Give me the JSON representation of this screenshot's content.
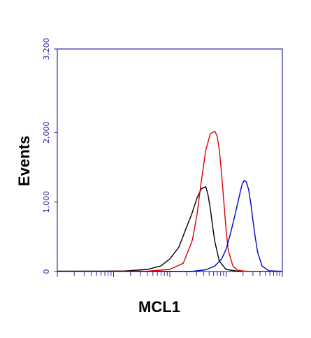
{
  "chart_data": {
    "type": "line",
    "title": "",
    "xlabel": "MCL1",
    "ylabel": "Events",
    "ylim": [
      0,
      3200
    ],
    "y_ticks": [
      {
        "value": 0,
        "label": "0"
      },
      {
        "value": 1000,
        "label": "1,000"
      },
      {
        "value": 2000,
        "label": "2,000"
      },
      {
        "value": 3200,
        "label": "3,200"
      }
    ],
    "xlim": [
      0,
      1
    ],
    "x_scale": "log (unlabeled)",
    "grid": false,
    "legend": "none",
    "axis_color": "#2a2aa8",
    "series": [
      {
        "color": "#000000",
        "x": [
          0.0,
          0.2,
          0.3,
          0.4,
          0.46,
          0.5,
          0.54,
          0.57,
          0.6,
          0.62,
          0.64,
          0.66,
          0.67,
          0.68,
          0.69,
          0.7,
          0.72,
          0.75,
          0.8,
          0.85,
          0.9,
          1.0
        ],
        "y": [
          5,
          5,
          8,
          30,
          80,
          180,
          350,
          600,
          850,
          1050,
          1190,
          1220,
          1100,
          900,
          650,
          430,
          150,
          30,
          5,
          3,
          3,
          3
        ]
      },
      {
        "color": "#dd0000",
        "x": [
          0.0,
          0.2,
          0.4,
          0.5,
          0.56,
          0.6,
          0.62,
          0.64,
          0.66,
          0.68,
          0.7,
          0.71,
          0.72,
          0.73,
          0.74,
          0.75,
          0.76,
          0.78,
          0.8,
          0.83,
          0.86,
          0.9,
          1.0
        ],
        "y": [
          3,
          3,
          5,
          30,
          120,
          450,
          800,
          1300,
          1750,
          1980,
          2020,
          1950,
          1750,
          1400,
          1000,
          600,
          300,
          80,
          20,
          5,
          3,
          3,
          3
        ]
      },
      {
        "color": "#0000cc",
        "x": [
          0.0,
          0.6,
          0.66,
          0.7,
          0.73,
          0.75,
          0.77,
          0.79,
          0.81,
          0.82,
          0.83,
          0.84,
          0.85,
          0.86,
          0.87,
          0.88,
          0.89,
          0.91,
          0.94,
          1.0
        ],
        "y": [
          3,
          3,
          25,
          80,
          180,
          320,
          550,
          820,
          1100,
          1240,
          1310,
          1290,
          1180,
          980,
          720,
          480,
          280,
          80,
          10,
          3
        ]
      }
    ]
  }
}
